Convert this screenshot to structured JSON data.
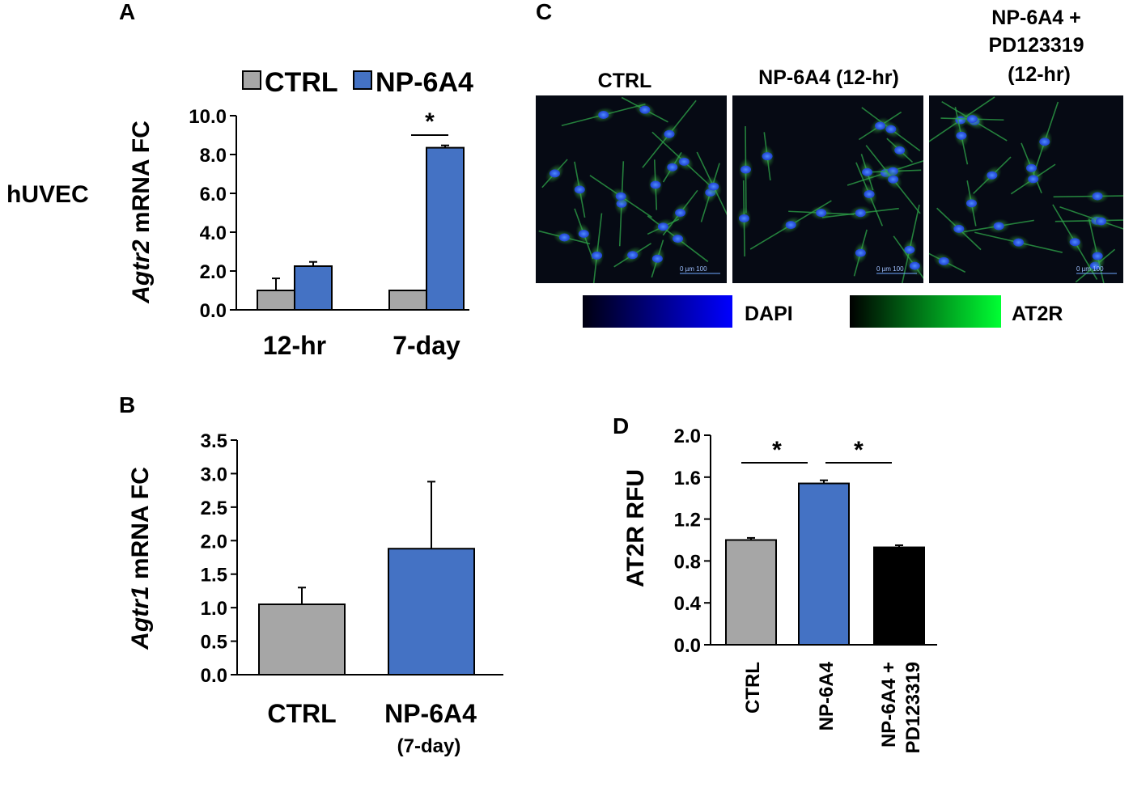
{
  "colors": {
    "ctrl": "#a6a6a6",
    "np6a4": "#4472c4",
    "pd": "#000000",
    "dapi_start": "#000010",
    "dapi_end": "#0000ff",
    "at2r_start": "#000000",
    "at2r_end": "#00ff33"
  },
  "row_label": "hUVEC",
  "panels": {
    "a": {
      "letter": "A",
      "ylabel_italic": "Agtr2",
      "ylabel_rest": " mRNA FC",
      "sig": "*"
    },
    "b": {
      "letter": "B",
      "ylabel_italic": "Agtr1",
      "ylabel_rest": " mRNA FC",
      "cat2_sub": "(7-day)"
    },
    "c": {
      "letter": "C",
      "images": [
        {
          "label_lines": [
            "CTRL"
          ],
          "scale_text": "0 µm 100"
        },
        {
          "label_lines": [
            "NP-6A4 (12-hr)"
          ],
          "scale_text": "0 µm 100"
        },
        {
          "label_lines": [
            "NP-6A4 +",
            "PD123319",
            "(12-hr)"
          ],
          "scale_text": "0 µm 100"
        }
      ],
      "colorbars": [
        {
          "label": "DAPI"
        },
        {
          "label": "AT2R"
        }
      ]
    },
    "d": {
      "letter": "D",
      "ylabel": "AT2R RFU",
      "sig1": "*",
      "sig2": "*"
    }
  },
  "chart_data": [
    {
      "type": "bar",
      "panel": "A",
      "categories": [
        "12-hr",
        "7-day"
      ],
      "series": [
        {
          "name": "CTRL",
          "values": [
            1.0,
            1.0
          ],
          "errors": [
            0.62,
            0.0
          ]
        },
        {
          "name": "NP-6A4",
          "values": [
            2.25,
            8.35
          ],
          "errors": [
            0.22,
            0.12
          ]
        }
      ],
      "ylabel": "Agtr2 mRNA FC",
      "ylim": [
        0,
        10
      ],
      "yticks": [
        "0.0",
        "2.0",
        "4.0",
        "6.0",
        "8.0",
        "10.0"
      ],
      "legend": "top",
      "significance": [
        {
          "category": "7-day",
          "label": "*"
        }
      ]
    },
    {
      "type": "bar",
      "panel": "B",
      "categories": [
        "CTRL",
        "NP-6A4"
      ],
      "values": [
        1.05,
        1.88
      ],
      "errors": [
        0.25,
        1.0
      ],
      "ylabel": "Agtr1 mRNA FC",
      "ylim": [
        0,
        3.5
      ],
      "yticks": [
        "0.0",
        "0.5",
        "1.0",
        "1.5",
        "2.0",
        "2.5",
        "3.0",
        "3.5"
      ]
    },
    {
      "type": "bar",
      "panel": "D",
      "categories": [
        "CTRL",
        "NP-6A4",
        "NP-6A4 + PD123319"
      ],
      "values": [
        1.0,
        1.54,
        0.93
      ],
      "errors": [
        0.02,
        0.03,
        0.02
      ],
      "ylabel": "AT2R RFU",
      "ylim": [
        0,
        2.0
      ],
      "yticks": [
        "0.0",
        "0.4",
        "0.8",
        "1.2",
        "1.6",
        "2.0"
      ],
      "significance": [
        {
          "between": [
            "CTRL",
            "NP-6A4"
          ],
          "label": "*"
        },
        {
          "between": [
            "NP-6A4",
            "NP-6A4 + PD123319"
          ],
          "label": "*"
        }
      ]
    }
  ]
}
